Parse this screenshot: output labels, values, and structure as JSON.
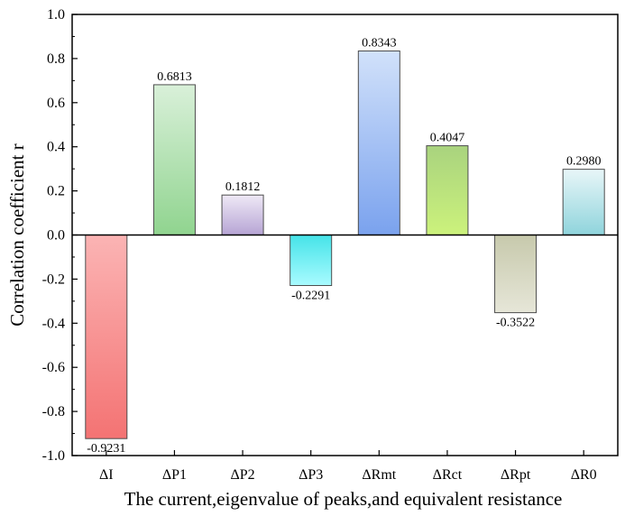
{
  "chart_data": {
    "type": "bar",
    "title": "",
    "xlabel": "The current,eigenvalue of peaks,and equivalent resistance",
    "ylabel": "Correlation coefficient r",
    "ylim": [
      -1.0,
      1.0
    ],
    "yticks": [
      -1.0,
      -0.8,
      -0.6,
      -0.4,
      -0.2,
      0.0,
      0.2,
      0.4,
      0.6,
      0.8,
      1.0
    ],
    "ytick_labels": [
      "-1.0",
      "-0.8",
      "-0.6",
      "-0.4",
      "-0.2",
      "0.0",
      "0.2",
      "0.4",
      "0.6",
      "0.8",
      "1.0"
    ],
    "grid": false,
    "categories": [
      "ΔI",
      "ΔP1",
      "ΔP2",
      "ΔP3",
      "ΔRmt",
      "ΔRct",
      "ΔRpt",
      "ΔR0"
    ],
    "values": [
      -0.9231,
      0.6813,
      0.1812,
      -0.2291,
      0.8343,
      0.4047,
      -0.3522,
      0.298
    ],
    "value_labels": [
      "-0.9231",
      "0.6813",
      "0.1812",
      "-0.2291",
      "0.8343",
      "0.4047",
      "-0.3522",
      "0.2980"
    ],
    "bar_colors": [
      {
        "light": "#fbb4b4",
        "dark": "#f47373"
      },
      {
        "light": "#d9f0d9",
        "dark": "#90d48f"
      },
      {
        "light": "#efe9f6",
        "dark": "#b6a4d4"
      },
      {
        "light": "#45e3e8",
        "dark": "#a9fbff"
      },
      {
        "light": "#d1e1fa",
        "dark": "#7aa2ee"
      },
      {
        "light": "#a9d37e",
        "dark": "#ccf27c"
      },
      {
        "light": "#c7c9ac",
        "dark": "#e6e6d8"
      },
      {
        "light": "#e8f6f8",
        "dark": "#8fd4dc"
      }
    ]
  }
}
